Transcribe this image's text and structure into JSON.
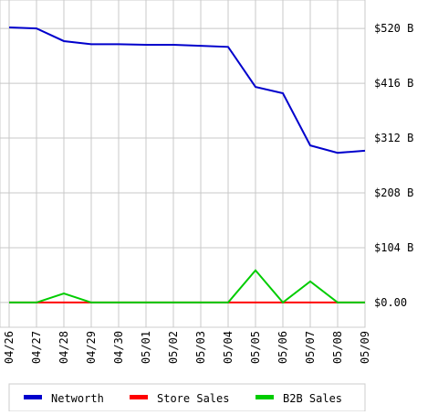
{
  "chart_data": {
    "type": "line",
    "categories": [
      "04/26",
      "04/27",
      "04/28",
      "04/29",
      "04/30",
      "05/01",
      "05/02",
      "05/03",
      "05/04",
      "05/05",
      "05/06",
      "05/07",
      "05/08",
      "05/09"
    ],
    "series": [
      {
        "name": "Networth",
        "color": "#0000cc",
        "values": [
          522,
          520,
          496,
          490,
          490,
          489,
          489,
          487,
          485,
          409,
          397,
          298,
          284,
          288
        ]
      },
      {
        "name": "Store Sales",
        "color": "#ff0000",
        "values": [
          0,
          0,
          0,
          0,
          0,
          0,
          0,
          0,
          0,
          0,
          0,
          0,
          0,
          0
        ]
      },
      {
        "name": "B2B Sales",
        "color": "#00cc00",
        "values": [
          0,
          0,
          17,
          0,
          0,
          0,
          0,
          0,
          0,
          61,
          0,
          40,
          0,
          0
        ]
      }
    ],
    "ylim": [
      -47,
      574
    ],
    "yticks": [
      {
        "value": 0,
        "label": "$0.00"
      },
      {
        "value": 104,
        "label": "$104 B"
      },
      {
        "value": 208,
        "label": "$208 B"
      },
      {
        "value": 312,
        "label": "$312 B"
      },
      {
        "value": 416,
        "label": "$416 B"
      },
      {
        "value": 520,
        "label": "$520 B"
      }
    ],
    "grid": true,
    "legend": "bottom"
  }
}
